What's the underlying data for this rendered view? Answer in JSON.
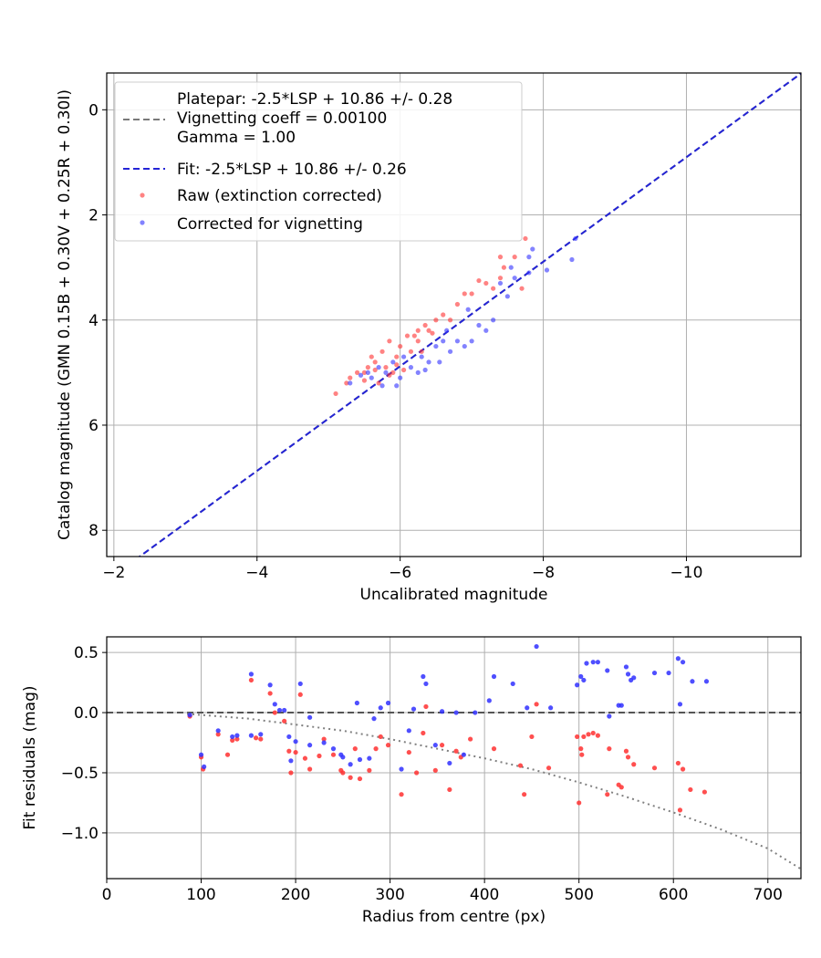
{
  "chart_data": [
    {
      "type": "scatter",
      "xlabel": "Uncalibrated magnitude",
      "ylabel": "Catalog magnitude (GMN 0.15B + 0.30V + 0.25R + 0.30I)",
      "xlim": [
        -1.9,
        -11.6
      ],
      "ylim": [
        8.5,
        -0.7
      ],
      "x_axis_inverted": true,
      "y_axis_inverted": true,
      "grid": true,
      "legend_position": "upper-left",
      "xticks": [
        -2,
        -4,
        -6,
        -8,
        -10
      ],
      "xtick_labels": [
        "−2",
        "−4",
        "−6",
        "−8",
        "−10"
      ],
      "yticks": [
        0,
        2,
        4,
        6,
        8
      ],
      "ytick_labels": [
        "0",
        "2",
        "4",
        "6",
        "8"
      ],
      "legend": [
        {
          "label": "Platepar: -2.5*LSP + 10.86 +/- 0.28\nVignetting coeff = 0.00100\nGamma = 1.00",
          "color": "#7a7a7a",
          "style": "dashed-line"
        },
        {
          "label": "Fit: -2.5*LSP + 10.86 +/- 0.26",
          "color": "#2424d6",
          "style": "dashed-line"
        },
        {
          "label": "Raw (extinction corrected)",
          "color": "#ff3030",
          "style": "marker"
        },
        {
          "label": "Corrected for vignetting",
          "color": "#3030ff",
          "style": "marker"
        }
      ],
      "lines": [
        {
          "name": "Platepar",
          "color": "#7a7a7a",
          "x": [
            -2.3,
            -11.6
          ],
          "y": [
            8.56,
            -0.69
          ]
        },
        {
          "name": "Fit",
          "color": "#2424d6",
          "x": [
            -2.3,
            -11.6
          ],
          "y": [
            8.56,
            -0.69
          ]
        }
      ],
      "series": [
        {
          "name": "Raw (extinction corrected)",
          "color": "#ff3030",
          "points": [
            [
              -5.1,
              5.4
            ],
            [
              -5.25,
              5.2
            ],
            [
              -5.3,
              5.1
            ],
            [
              -5.4,
              5.0
            ],
            [
              -5.5,
              5.0
            ],
            [
              -5.55,
              4.9
            ],
            [
              -5.6,
              4.7
            ],
            [
              -5.65,
              4.8
            ],
            [
              -5.7,
              5.2
            ],
            [
              -5.75,
              4.6
            ],
            [
              -5.8,
              4.9
            ],
            [
              -5.85,
              4.4
            ],
            [
              -5.9,
              5.0
            ],
            [
              -5.95,
              4.7
            ],
            [
              -6.0,
              4.5
            ],
            [
              -6.05,
              4.95
            ],
            [
              -6.1,
              4.3
            ],
            [
              -6.15,
              4.6
            ],
            [
              -6.2,
              4.3
            ],
            [
              -6.25,
              4.2
            ],
            [
              -6.3,
              4.6
            ],
            [
              -6.35,
              4.1
            ],
            [
              -6.4,
              4.2
            ],
            [
              -6.5,
              4.0
            ],
            [
              -6.6,
              3.9
            ],
            [
              -6.7,
              4.0
            ],
            [
              -6.8,
              3.7
            ],
            [
              -6.9,
              3.5
            ],
            [
              -7.0,
              3.5
            ],
            [
              -7.1,
              3.25
            ],
            [
              -7.2,
              3.3
            ],
            [
              -7.3,
              3.4
            ],
            [
              -7.4,
              3.2
            ],
            [
              -7.4,
              2.8
            ],
            [
              -7.45,
              3.0
            ],
            [
              -7.6,
              2.8
            ],
            [
              -7.7,
              3.4
            ],
            [
              -7.75,
              2.45
            ],
            [
              -5.5,
              5.15
            ],
            [
              -5.65,
              4.95
            ],
            [
              -5.95,
              4.85
            ],
            [
              -6.25,
              4.4
            ],
            [
              -6.45,
              4.25
            ],
            [
              -5.85,
              5.05
            ]
          ]
        },
        {
          "name": "Corrected for vignetting",
          "color": "#3030ff",
          "points": [
            [
              -5.3,
              5.2
            ],
            [
              -5.45,
              5.05
            ],
            [
              -5.6,
              5.1
            ],
            [
              -5.7,
              4.9
            ],
            [
              -5.75,
              5.25
            ],
            [
              -5.8,
              5.0
            ],
            [
              -5.9,
              4.8
            ],
            [
              -6.0,
              5.1
            ],
            [
              -6.05,
              4.7
            ],
            [
              -6.15,
              4.9
            ],
            [
              -6.25,
              5.0
            ],
            [
              -6.3,
              4.7
            ],
            [
              -6.4,
              4.8
            ],
            [
              -6.5,
              4.5
            ],
            [
              -6.55,
              4.8
            ],
            [
              -6.6,
              4.4
            ],
            [
              -6.7,
              4.6
            ],
            [
              -6.8,
              4.4
            ],
            [
              -6.9,
              4.5
            ],
            [
              -7.0,
              4.4
            ],
            [
              -7.1,
              4.1
            ],
            [
              -7.2,
              4.2
            ],
            [
              -7.3,
              4.0
            ],
            [
              -7.4,
              3.3
            ],
            [
              -7.5,
              3.55
            ],
            [
              -7.6,
              3.2
            ],
            [
              -7.8,
              3.1
            ],
            [
              -8.05,
              3.05
            ],
            [
              -8.4,
              2.85
            ],
            [
              -8.45,
              2.45
            ],
            [
              -7.8,
              2.8
            ],
            [
              -7.85,
              2.65
            ],
            [
              -7.55,
              3.0
            ],
            [
              -6.95,
              3.8
            ],
            [
              -6.65,
              4.2
            ],
            [
              -5.55,
              5.0
            ],
            [
              -5.95,
              5.25
            ],
            [
              -6.35,
              4.95
            ]
          ]
        }
      ]
    },
    {
      "type": "scatter",
      "xlabel": "Radius from centre (px)",
      "ylabel": "Fit residuals (mag)",
      "xlim": [
        0,
        735
      ],
      "ylim": [
        -1.38,
        0.63
      ],
      "grid": true,
      "xticks": [
        0,
        100,
        200,
        300,
        400,
        500,
        600,
        700
      ],
      "xtick_labels": [
        "0",
        "100",
        "200",
        "300",
        "400",
        "500",
        "600",
        "700"
      ],
      "yticks": [
        0.5,
        0.0,
        -0.5,
        -1.0
      ],
      "ytick_labels": [
        "0.5",
        "0.0",
        "−0.5",
        "−1.0"
      ],
      "lines": [
        {
          "name": "zero",
          "color": "#555555",
          "style": "dashed",
          "x": [
            0,
            735
          ],
          "y": [
            0,
            0
          ]
        },
        {
          "name": "vignetting",
          "color": "#808080",
          "style": "dotted",
          "x": [
            85,
            150,
            200,
            250,
            300,
            350,
            400,
            450,
            500,
            550,
            600,
            650,
            700,
            735
          ],
          "y": [
            -0.01,
            -0.05,
            -0.1,
            -0.15,
            -0.22,
            -0.3,
            -0.38,
            -0.47,
            -0.58,
            -0.7,
            -0.83,
            -0.97,
            -1.13,
            -1.3
          ]
        }
      ],
      "series": [
        {
          "name": "Raw (extinction corrected)",
          "color": "#ff3030",
          "points": [
            [
              88,
              -0.03
            ],
            [
              100,
              -0.37
            ],
            [
              102,
              -0.47
            ],
            [
              118,
              -0.18
            ],
            [
              128,
              -0.35
            ],
            [
              133,
              -0.23
            ],
            [
              138,
              -0.22
            ],
            [
              153,
              0.27
            ],
            [
              158,
              -0.21
            ],
            [
              163,
              -0.22
            ],
            [
              173,
              0.16
            ],
            [
              178,
              0.0
            ],
            [
              188,
              -0.07
            ],
            [
              193,
              -0.32
            ],
            [
              195,
              -0.5
            ],
            [
              200,
              -0.33
            ],
            [
              205,
              0.15
            ],
            [
              210,
              -0.38
            ],
            [
              215,
              -0.47
            ],
            [
              225,
              -0.36
            ],
            [
              230,
              -0.22
            ],
            [
              240,
              -0.35
            ],
            [
              248,
              -0.48
            ],
            [
              250,
              -0.5
            ],
            [
              258,
              -0.54
            ],
            [
              263,
              -0.3
            ],
            [
              268,
              -0.55
            ],
            [
              278,
              -0.48
            ],
            [
              285,
              -0.3
            ],
            [
              290,
              -0.2
            ],
            [
              298,
              -0.27
            ],
            [
              312,
              -0.68
            ],
            [
              320,
              -0.33
            ],
            [
              328,
              -0.5
            ],
            [
              335,
              -0.17
            ],
            [
              338,
              0.05
            ],
            [
              348,
              -0.48
            ],
            [
              355,
              -0.27
            ],
            [
              363,
              -0.64
            ],
            [
              370,
              -0.32
            ],
            [
              375,
              -0.37
            ],
            [
              385,
              -0.22
            ],
            [
              410,
              -0.3
            ],
            [
              438,
              -0.44
            ],
            [
              442,
              -0.68
            ],
            [
              450,
              -0.2
            ],
            [
              455,
              0.07
            ],
            [
              468,
              -0.46
            ],
            [
              498,
              -0.2
            ],
            [
              500,
              -0.75
            ],
            [
              502,
              -0.3
            ],
            [
              503,
              -0.35
            ],
            [
              505,
              -0.2
            ],
            [
              510,
              -0.18
            ],
            [
              515,
              -0.17
            ],
            [
              520,
              -0.19
            ],
            [
              530,
              -0.68
            ],
            [
              532,
              -0.3
            ],
            [
              542,
              -0.6
            ],
            [
              545,
              -0.62
            ],
            [
              550,
              -0.32
            ],
            [
              552,
              -0.37
            ],
            [
              558,
              -0.43
            ],
            [
              580,
              -0.46
            ],
            [
              605,
              -0.42
            ],
            [
              607,
              -0.81
            ],
            [
              610,
              -0.47
            ],
            [
              618,
              -0.64
            ],
            [
              633,
              -0.66
            ]
          ]
        },
        {
          "name": "Corrected for vignetting",
          "color": "#3030ff",
          "points": [
            [
              88,
              -0.02
            ],
            [
              100,
              -0.35
            ],
            [
              103,
              -0.45
            ],
            [
              118,
              -0.15
            ],
            [
              133,
              -0.2
            ],
            [
              138,
              -0.19
            ],
            [
              153,
              0.32
            ],
            [
              153,
              -0.19
            ],
            [
              163,
              -0.18
            ],
            [
              173,
              0.23
            ],
            [
              178,
              0.07
            ],
            [
              183,
              0.02
            ],
            [
              188,
              0.02
            ],
            [
              193,
              -0.2
            ],
            [
              195,
              -0.4
            ],
            [
              200,
              -0.24
            ],
            [
              205,
              0.24
            ],
            [
              215,
              -0.27
            ],
            [
              215,
              -0.04
            ],
            [
              230,
              -0.25
            ],
            [
              240,
              -0.3
            ],
            [
              248,
              -0.35
            ],
            [
              250,
              -0.37
            ],
            [
              258,
              -0.43
            ],
            [
              265,
              0.08
            ],
            [
              268,
              -0.39
            ],
            [
              278,
              -0.38
            ],
            [
              283,
              -0.05
            ],
            [
              290,
              0.04
            ],
            [
              298,
              0.08
            ],
            [
              312,
              -0.47
            ],
            [
              320,
              -0.15
            ],
            [
              325,
              0.03
            ],
            [
              335,
              0.3
            ],
            [
              338,
              0.24
            ],
            [
              348,
              -0.27
            ],
            [
              355,
              0.01
            ],
            [
              363,
              -0.42
            ],
            [
              370,
              0.0
            ],
            [
              378,
              -0.35
            ],
            [
              390,
              0.0
            ],
            [
              405,
              0.1
            ],
            [
              410,
              0.3
            ],
            [
              430,
              0.24
            ],
            [
              445,
              0.04
            ],
            [
              455,
              0.55
            ],
            [
              470,
              0.04
            ],
            [
              498,
              0.23
            ],
            [
              502,
              0.3
            ],
            [
              505,
              0.27
            ],
            [
              508,
              0.41
            ],
            [
              515,
              0.42
            ],
            [
              520,
              0.42
            ],
            [
              530,
              0.35
            ],
            [
              532,
              -0.03
            ],
            [
              542,
              0.06
            ],
            [
              545,
              0.06
            ],
            [
              550,
              0.38
            ],
            [
              552,
              0.32
            ],
            [
              555,
              0.27
            ],
            [
              558,
              0.29
            ],
            [
              580,
              0.33
            ],
            [
              595,
              0.33
            ],
            [
              605,
              0.45
            ],
            [
              607,
              0.07
            ],
            [
              610,
              0.42
            ],
            [
              620,
              0.26
            ],
            [
              635,
              0.26
            ]
          ]
        }
      ]
    }
  ]
}
